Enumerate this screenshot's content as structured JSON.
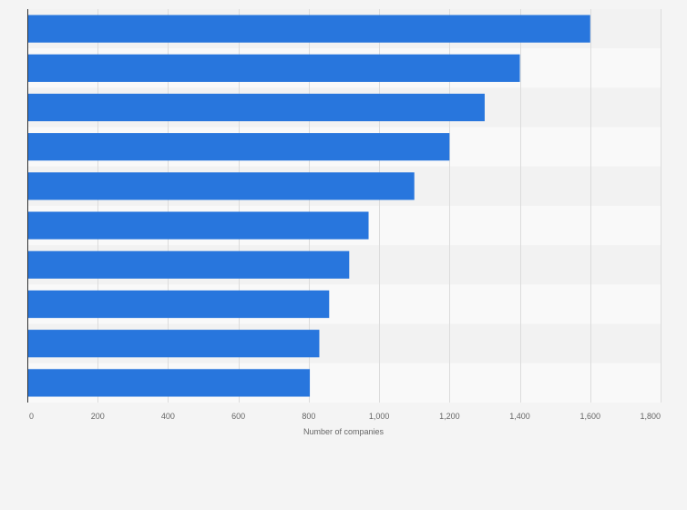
{
  "chart_data": {
    "type": "bar",
    "orientation": "horizontal",
    "title": "",
    "xlabel": "Number of companies",
    "ylabel": "",
    "xlim": [
      0,
      1800
    ],
    "x_ticks": [
      0,
      200,
      400,
      600,
      800,
      1000,
      1200,
      1400,
      1600,
      1800
    ],
    "x_tick_labels": [
      "0",
      "200",
      "400",
      "600",
      "800",
      "1,000",
      "1,200",
      "1,400",
      "1,600",
      "1,800"
    ],
    "categories": [
      "",
      "",
      "",
      "",
      "",
      "",
      "",
      "",
      "",
      ""
    ],
    "values": [
      1600,
      1400,
      1300,
      1200,
      1100,
      970,
      915,
      858,
      830,
      803
    ],
    "bar_color": "#2876dd",
    "grid": true
  }
}
